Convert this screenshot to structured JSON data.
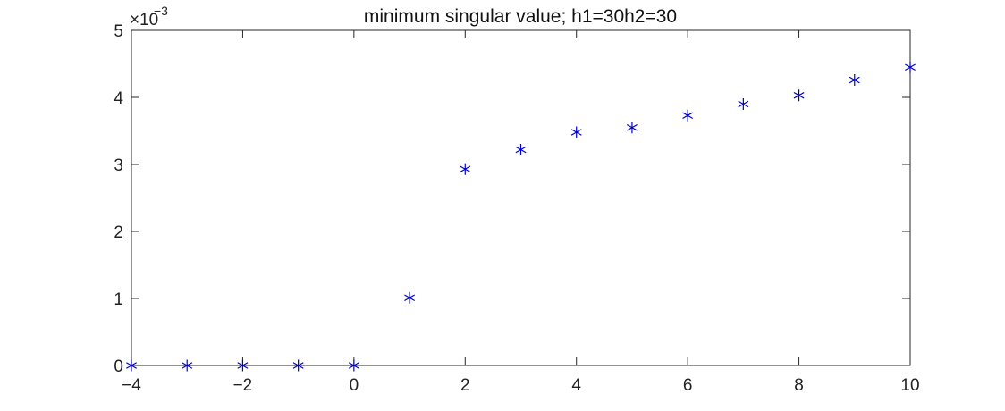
{
  "chart_data": {
    "type": "scatter",
    "title": "minimum singular value; h1=30h2=30",
    "xlabel": "",
    "ylabel": "",
    "xlim": [
      -4,
      10
    ],
    "ylim": [
      0,
      5
    ],
    "y_exponent_base": "×10",
    "y_exponent_power": "−3",
    "x_ticks": [
      -4,
      -2,
      0,
      2,
      4,
      6,
      8,
      10
    ],
    "x_tick_labels": [
      "−4",
      "−2",
      "0",
      "2",
      "4",
      "6",
      "8",
      "10"
    ],
    "y_ticks": [
      0,
      1,
      2,
      3,
      4,
      5
    ],
    "y_tick_labels": [
      "0",
      "1",
      "2",
      "3",
      "4",
      "5"
    ],
    "marker": "asterisk",
    "marker_color": "#0000cc",
    "axis_color": "#262626",
    "grid": false,
    "legend": "none",
    "series": [
      {
        "x": [
          -4,
          -3,
          -2,
          -1,
          0,
          1,
          2,
          3,
          4,
          5,
          6,
          7,
          8,
          9,
          10
        ],
        "y": [
          0.0,
          0.0,
          0.0,
          0.0,
          0.0,
          1.01,
          2.93,
          3.22,
          3.48,
          3.55,
          3.73,
          3.9,
          4.03,
          4.26,
          4.45
        ]
      }
    ]
  }
}
